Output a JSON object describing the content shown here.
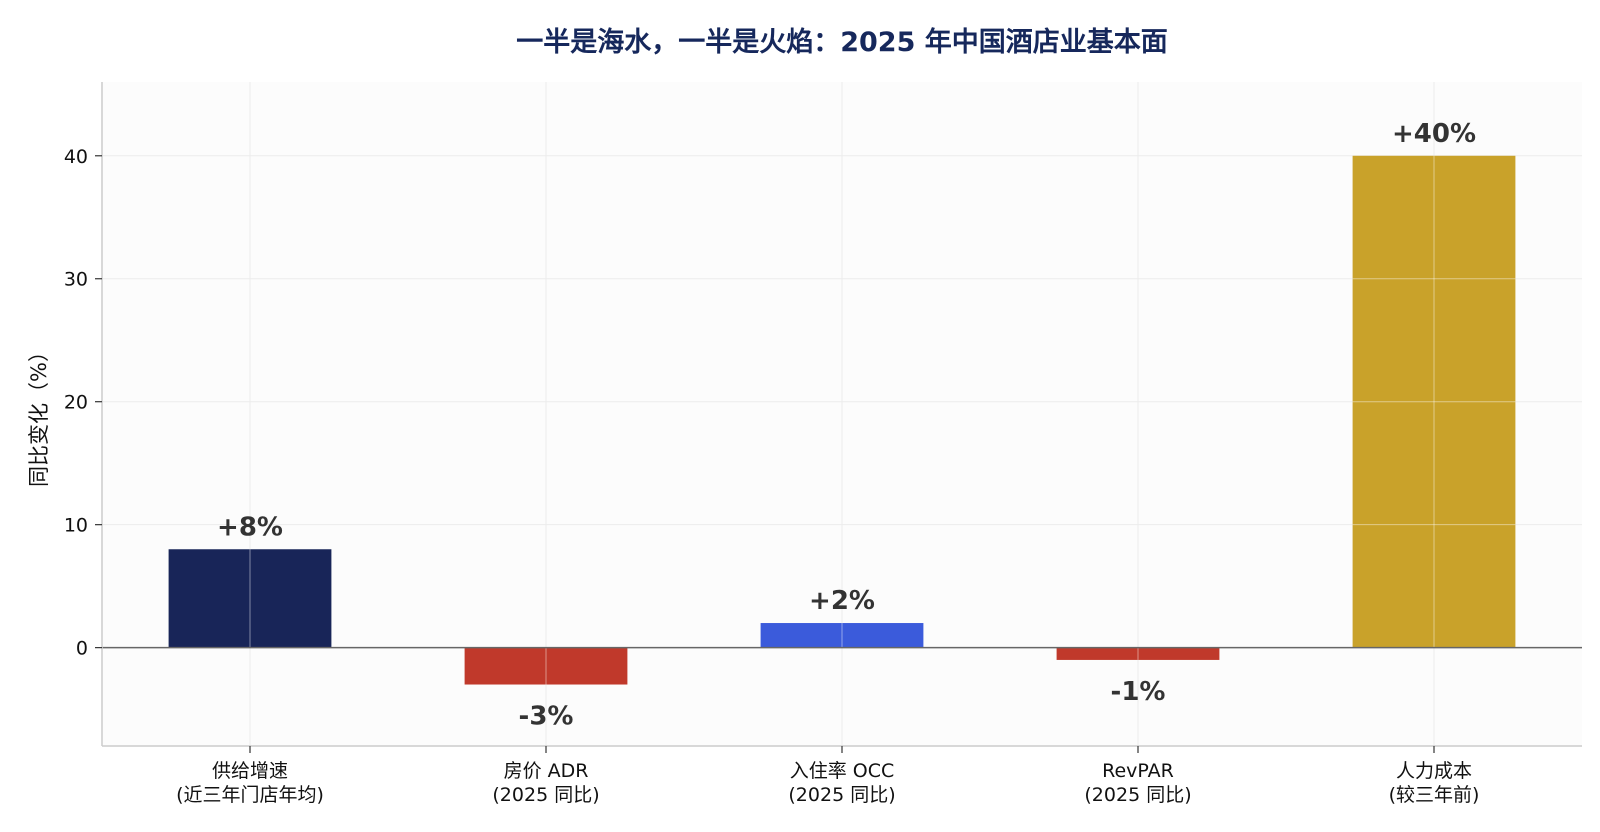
{
  "chart_data": {
    "type": "bar",
    "title": "一半是海水，一半是火焰：2025 年中国酒店业基本面",
    "xlabel": "",
    "ylabel": "同比变化（%）",
    "ylim": [
      -8,
      46
    ],
    "yticks": [
      0,
      10,
      20,
      30,
      40
    ],
    "grid": true,
    "categories": [
      [
        "供给增速",
        "(近三年门店年均)"
      ],
      [
        "房价 ADR",
        "(2025 同比)"
      ],
      [
        "入住率 OCC",
        "(2025 同比)"
      ],
      [
        "RevPAR",
        "(2025 同比)"
      ],
      [
        "人力成本",
        "(较三年前)"
      ]
    ],
    "values": [
      8,
      -3,
      2,
      -1,
      40
    ],
    "data_labels": [
      "+8%",
      "-3%",
      "+2%",
      "-1%",
      "+40%"
    ],
    "colors": [
      "#182558",
      "#c0392b",
      "#3b5bdb",
      "#c0392b",
      "#c9a22a"
    ]
  }
}
